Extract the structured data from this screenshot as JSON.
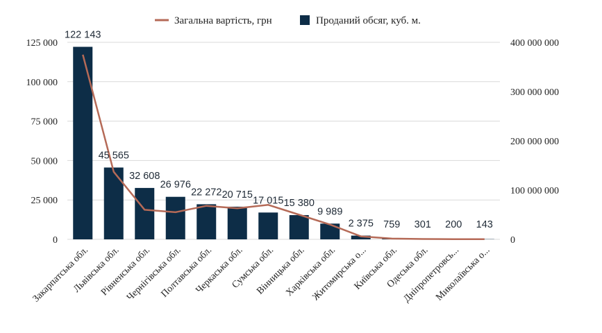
{
  "chart_data": {
    "type": "bar",
    "title": "",
    "xlabel": "",
    "ylabel": "",
    "legend_position": "top-center",
    "grid": true,
    "colors": {
      "bar": "#0d2d47",
      "line": "#b56a57",
      "grid": "#d9d9d9"
    },
    "categories": [
      "Закарпатська обл.",
      "Львівська обл.",
      "Рівненська обл.",
      "Чернігівська обл.",
      "Полтавська обл.",
      "Черкаська обл.",
      "Сумська обл.",
      "Вінницька обл.",
      "Харківська обл.",
      "Житомирська о...",
      "Київська обл.",
      "Одеська обл.",
      "Дніпропетровсь...",
      "Миколаївська о..."
    ],
    "series": [
      {
        "name": "Проданий обсяг, куб. м.",
        "type": "bar",
        "axis": "left",
        "values": [
          122143,
          45565,
          32608,
          26976,
          22272,
          20715,
          17015,
          15380,
          9989,
          2375,
          759,
          301,
          200,
          143
        ],
        "labels": [
          "122 143",
          "45 565",
          "32 608",
          "26 976",
          "22 272",
          "20 715",
          "17 015",
          "15 380",
          "9 989",
          "2 375",
          "759",
          "301",
          "200",
          "143"
        ]
      },
      {
        "name": "Загальна вартість, грн",
        "type": "line",
        "axis": "right",
        "values": [
          375000000,
          137000000,
          60000000,
          55000000,
          68000000,
          63000000,
          70000000,
          50000000,
          30000000,
          6000000,
          1500000,
          700000,
          400000,
          300000
        ]
      }
    ],
    "y_left": {
      "ylim": [
        0,
        125000
      ],
      "ticks": [
        0,
        25000,
        50000,
        75000,
        100000,
        125000
      ],
      "tick_labels": [
        "0",
        "25 000",
        "50 000",
        "75 000",
        "100 000",
        "125 000"
      ]
    },
    "y_right": {
      "ylim": [
        0,
        400000000
      ],
      "ticks": [
        0,
        100000000,
        200000000,
        300000000,
        400000000
      ],
      "tick_labels": [
        "0",
        "100 000 000",
        "200 000 000",
        "300 000 000",
        "400 000 000"
      ]
    }
  }
}
